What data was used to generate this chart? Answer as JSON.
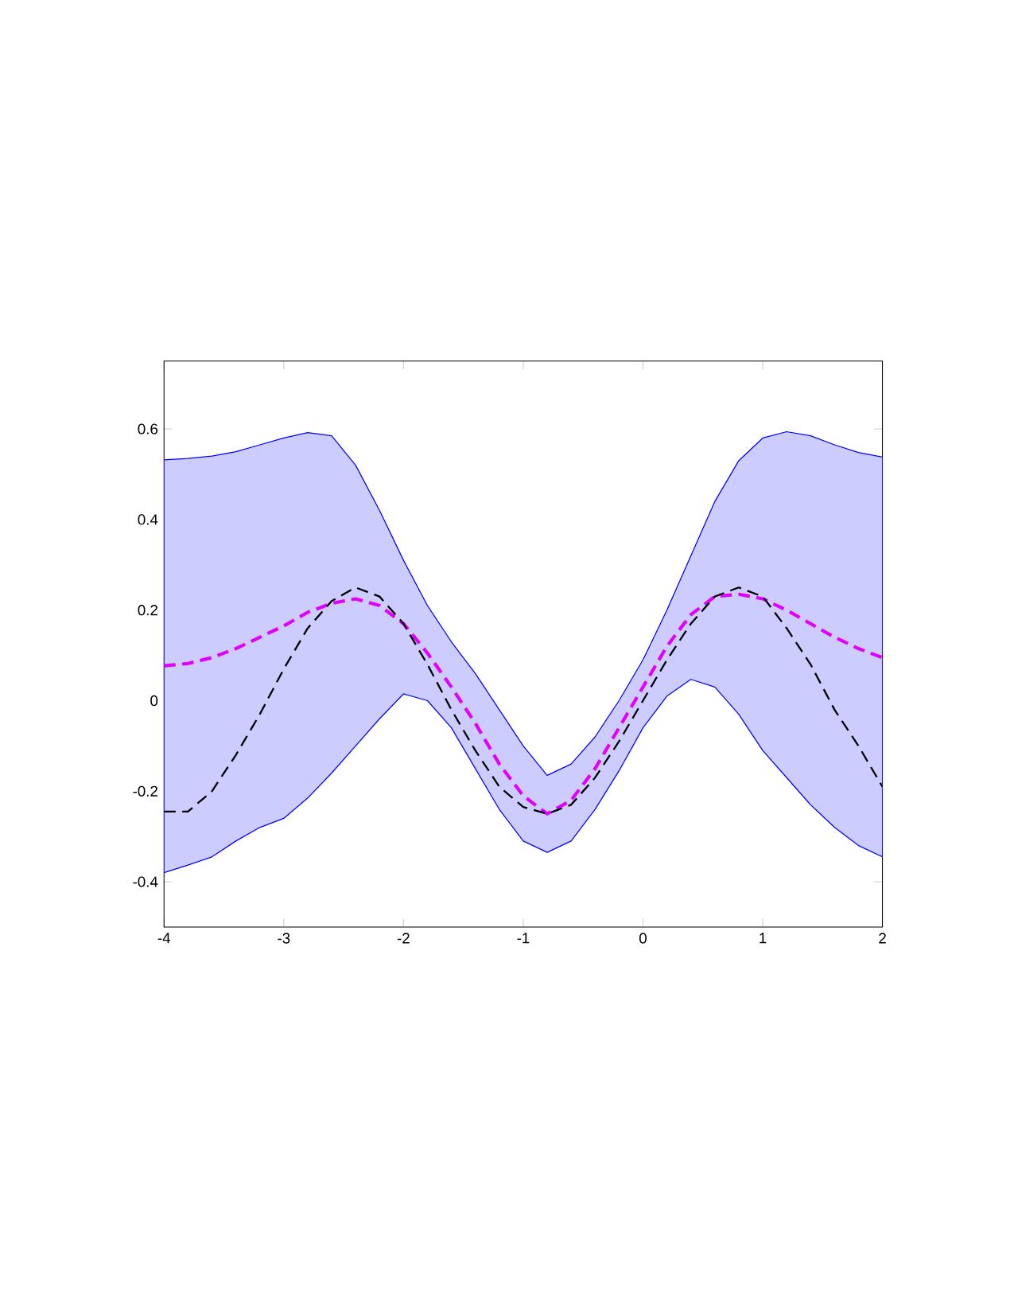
{
  "chart_data": {
    "type": "line",
    "x": [
      -4,
      -3.8,
      -3.6,
      -3.4,
      -3.2,
      -3.0,
      -2.8,
      -2.6,
      -2.4,
      -2.2,
      -2.0,
      -1.8,
      -1.6,
      -1.4,
      -1.2,
      -1.0,
      -0.8,
      -0.6,
      -0.4,
      -0.2,
      0,
      0.2,
      0.4,
      0.6,
      0.8,
      1.0,
      1.2,
      1.4,
      1.6,
      1.8,
      2.0
    ],
    "series": [
      {
        "color": "#e000ff",
        "line_style": "dashed",
        "values": [
          0.077,
          0.082,
          0.095,
          0.115,
          0.14,
          0.165,
          0.195,
          0.215,
          0.225,
          0.21,
          0.17,
          0.105,
          0.03,
          -0.05,
          -0.14,
          -0.21,
          -0.25,
          -0.22,
          -0.15,
          -0.06,
          0.03,
          0.12,
          0.19,
          0.23,
          0.235,
          0.225,
          0.2,
          0.17,
          0.14,
          0.115,
          0.095
        ],
        "upper": [
          0.532,
          0.535,
          0.54,
          0.55,
          0.565,
          0.58,
          0.592,
          0.585,
          0.52,
          0.42,
          0.31,
          0.21,
          0.13,
          0.06,
          -0.02,
          -0.1,
          -0.165,
          -0.14,
          -0.08,
          0.0,
          0.09,
          0.2,
          0.32,
          0.44,
          0.53,
          0.58,
          0.594,
          0.585,
          0.565,
          0.548,
          0.538
        ],
        "lower": [
          -0.38,
          -0.363,
          -0.345,
          -0.31,
          -0.28,
          -0.26,
          -0.215,
          -0.16,
          -0.1,
          -0.04,
          0.015,
          0.0,
          -0.06,
          -0.15,
          -0.24,
          -0.31,
          -0.335,
          -0.31,
          -0.24,
          -0.155,
          -0.06,
          0.01,
          0.047,
          0.03,
          -0.03,
          -0.11,
          -0.17,
          -0.23,
          -0.28,
          -0.32,
          -0.345
        ]
      },
      {
        "color": "#000000",
        "line_style": "dashed",
        "values": [
          -0.245,
          -0.245,
          -0.2,
          -0.12,
          -0.03,
          0.07,
          0.16,
          0.22,
          0.25,
          0.23,
          0.17,
          0.08,
          -0.02,
          -0.11,
          -0.19,
          -0.235,
          -0.25,
          -0.23,
          -0.17,
          -0.09,
          0.0,
          0.09,
          0.17,
          0.23,
          0.25,
          0.23,
          0.16,
          0.08,
          -0.02,
          -0.1,
          -0.19
        ]
      }
    ],
    "xlim": [
      -4,
      2
    ],
    "ylim": [
      -0.5,
      0.75
    ],
    "xticks": [
      -4,
      -3,
      -2,
      -1,
      0,
      1,
      2
    ],
    "yticks": [
      -0.4,
      -0.2,
      0,
      0.2,
      0.4,
      0.6
    ],
    "grid": false
  }
}
